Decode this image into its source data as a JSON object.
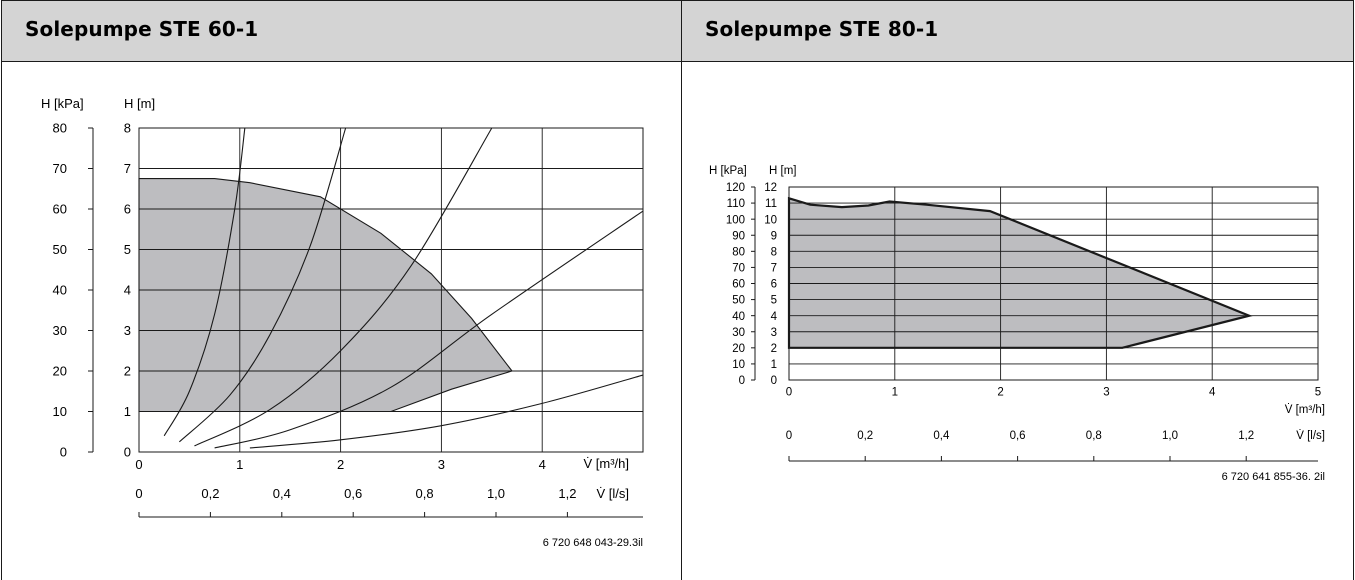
{
  "panels": [
    {
      "title": "Solepumpe STE 60-1"
    },
    {
      "title": "Solepumpe STE 80-1"
    }
  ],
  "chart_data": [
    {
      "type": "area",
      "title": "Solepumpe STE 60-1",
      "y_left_label": "H [kPa]",
      "y_right_label": "H [m]",
      "xlabel": "V̇ [m³/h]",
      "x2label": "V̇ [l/s]",
      "xlim": [
        0,
        5
      ],
      "ylim": [
        0,
        8
      ],
      "kpa_ticks": [
        "0",
        "10",
        "20",
        "30",
        "40",
        "50",
        "60",
        "70",
        "80"
      ],
      "m_ticks": [
        "0",
        "1",
        "2",
        "3",
        "4",
        "5",
        "6",
        "7",
        "8"
      ],
      "x_ticks": [
        "0",
        "1",
        "2",
        "3",
        "4"
      ],
      "ls_ticks": [
        "0",
        "0,2",
        "0,4",
        "0,6",
        "0,8",
        "1,0",
        "1,2"
      ],
      "operating_range": [
        [
          0,
          6.75
        ],
        [
          0.75,
          6.75
        ],
        [
          1.1,
          6.65
        ],
        [
          1.8,
          6.3
        ],
        [
          2.4,
          5.4
        ],
        [
          2.9,
          4.4
        ],
        [
          3.3,
          3.3
        ],
        [
          3.7,
          2.0
        ],
        [
          3.1,
          1.55
        ],
        [
          2.5,
          1.0
        ],
        [
          0,
          1.0
        ]
      ],
      "system_curves": [
        [
          [
            0.25,
            0.4
          ],
          [
            0.5,
            1.5
          ],
          [
            0.75,
            3.4
          ],
          [
            0.95,
            6.0
          ],
          [
            1.05,
            8.0
          ]
        ],
        [
          [
            0.4,
            0.25
          ],
          [
            0.9,
            1.4
          ],
          [
            1.3,
            2.9
          ],
          [
            1.7,
            5.1
          ],
          [
            2.05,
            8.0
          ]
        ],
        [
          [
            0.55,
            0.15
          ],
          [
            1.3,
            1.05
          ],
          [
            2.0,
            2.5
          ],
          [
            2.7,
            4.6
          ],
          [
            3.5,
            8.0
          ]
        ],
        [
          [
            0.75,
            0.1
          ],
          [
            1.5,
            0.55
          ],
          [
            2.5,
            1.6
          ],
          [
            3.5,
            3.4
          ],
          [
            5.0,
            5.95
          ]
        ],
        [
          [
            1.1,
            0.1
          ],
          [
            2.0,
            0.3
          ],
          [
            3.0,
            0.65
          ],
          [
            4.0,
            1.2
          ],
          [
            5.0,
            1.9
          ]
        ]
      ],
      "code": "6 720 648 043-29.3il"
    },
    {
      "type": "area",
      "title": "Solepumpe STE 80-1",
      "y_left_label": "H [kPa]",
      "y_right_label": "H [m]",
      "xlabel": "V̇ [m³/h]",
      "x2label": "V̇ [l/s]",
      "xlim": [
        0,
        5
      ],
      "ylim": [
        0,
        12
      ],
      "kpa_ticks": [
        "0",
        "10",
        "20",
        "30",
        "40",
        "50",
        "60",
        "70",
        "80",
        "90",
        "100",
        "110",
        "120"
      ],
      "m_ticks": [
        "0",
        "1",
        "2",
        "3",
        "4",
        "5",
        "6",
        "7",
        "8",
        "9",
        "10",
        "11",
        "12"
      ],
      "x_ticks": [
        "0",
        "1",
        "2",
        "3",
        "4",
        "5"
      ],
      "ls_ticks": [
        "0",
        "0,2",
        "0,4",
        "0,6",
        "0,8",
        "1,0",
        "1,2"
      ],
      "operating_range": [
        [
          0,
          11.3
        ],
        [
          0.2,
          10.9
        ],
        [
          0.5,
          10.75
        ],
        [
          0.75,
          10.85
        ],
        [
          0.95,
          11.1
        ],
        [
          1.3,
          10.9
        ],
        [
          1.9,
          10.5
        ],
        [
          4.35,
          4.0
        ],
        [
          3.15,
          2.0
        ],
        [
          0,
          2.0
        ]
      ],
      "code": "6 720 641 855-36. 2il"
    }
  ]
}
